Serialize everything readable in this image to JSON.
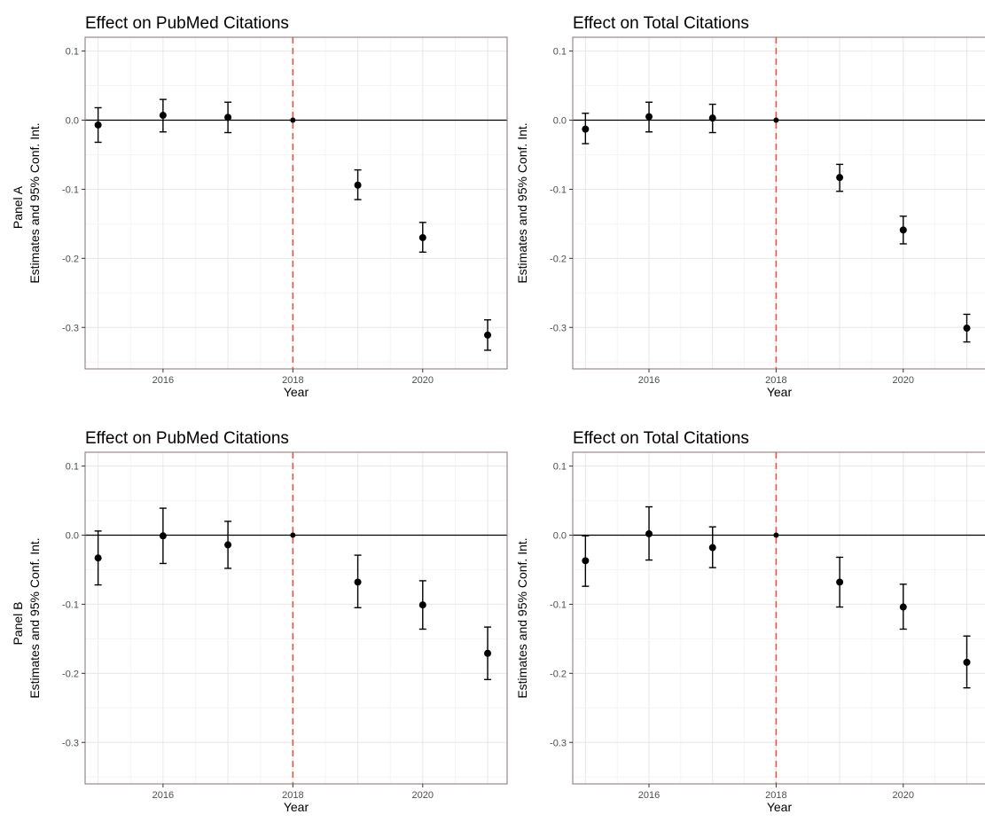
{
  "row_labels": [
    "Panel A",
    "Panel B"
  ],
  "chart_data": [
    {
      "type": "scatter",
      "title": "Effect on PubMed Citations",
      "xlabel": "Year",
      "ylabel": "Estimates and 95% Conf. Int.",
      "row_label": "Panel A",
      "xlim": [
        2014.8,
        2021.3
      ],
      "ylim": [
        -0.36,
        0.12
      ],
      "xticks": [
        "2016",
        "2018",
        "2020"
      ],
      "yticks": [
        "0.1",
        "0.0",
        "-0.1",
        "-0.2",
        "-0.3"
      ],
      "grid": true,
      "reference_line": {
        "y": 0,
        "color": "#000000"
      },
      "event_line": {
        "x": 2018,
        "color": "#e8553f",
        "style": "dashed"
      },
      "points": [
        {
          "x": 2015,
          "y": -0.007,
          "lo": -0.032,
          "hi": 0.018
        },
        {
          "x": 2016,
          "y": 0.007,
          "lo": -0.017,
          "hi": 0.03
        },
        {
          "x": 2017,
          "y": 0.004,
          "lo": -0.018,
          "hi": 0.026
        },
        {
          "x": 2018,
          "y": 0.0,
          "lo": 0.0,
          "hi": 0.0
        },
        {
          "x": 2019,
          "y": -0.094,
          "lo": -0.115,
          "hi": -0.072
        },
        {
          "x": 2020,
          "y": -0.17,
          "lo": -0.191,
          "hi": -0.148
        },
        {
          "x": 2021,
          "y": -0.311,
          "lo": -0.333,
          "hi": -0.289
        }
      ]
    },
    {
      "type": "scatter",
      "title": "Effect on Total Citations",
      "xlabel": "Year",
      "ylabel": "Estimates and 95% Conf. Int.",
      "row_label": "",
      "xlim": [
        2014.8,
        2021.3
      ],
      "ylim": [
        -0.36,
        0.12
      ],
      "xticks": [
        "2016",
        "2018",
        "2020"
      ],
      "yticks": [
        "0.1",
        "0.0",
        "-0.1",
        "-0.2",
        "-0.3"
      ],
      "grid": true,
      "reference_line": {
        "y": 0,
        "color": "#000000"
      },
      "event_line": {
        "x": 2018,
        "color": "#e8553f",
        "style": "dashed"
      },
      "points": [
        {
          "x": 2015,
          "y": -0.013,
          "lo": -0.034,
          "hi": 0.01
        },
        {
          "x": 2016,
          "y": 0.005,
          "lo": -0.017,
          "hi": 0.026
        },
        {
          "x": 2017,
          "y": 0.003,
          "lo": -0.018,
          "hi": 0.023
        },
        {
          "x": 2018,
          "y": 0.0,
          "lo": 0.0,
          "hi": 0.0
        },
        {
          "x": 2019,
          "y": -0.083,
          "lo": -0.103,
          "hi": -0.064
        },
        {
          "x": 2020,
          "y": -0.159,
          "lo": -0.179,
          "hi": -0.139
        },
        {
          "x": 2021,
          "y": -0.301,
          "lo": -0.321,
          "hi": -0.281
        }
      ]
    },
    {
      "type": "scatter",
      "title": "Effect on PubMed Citations",
      "xlabel": "Year",
      "ylabel": "Estimates and 95% Conf. Int.",
      "row_label": "Panel B",
      "xlim": [
        2014.8,
        2021.3
      ],
      "ylim": [
        -0.36,
        0.12
      ],
      "xticks": [
        "2016",
        "2018",
        "2020"
      ],
      "yticks": [
        "0.1",
        "0.0",
        "-0.1",
        "-0.2",
        "-0.3"
      ],
      "grid": true,
      "reference_line": {
        "y": 0,
        "color": "#000000"
      },
      "event_line": {
        "x": 2018,
        "color": "#e8553f",
        "style": "dashed"
      },
      "points": [
        {
          "x": 2015,
          "y": -0.033,
          "lo": -0.072,
          "hi": 0.006
        },
        {
          "x": 2016,
          "y": -0.001,
          "lo": -0.041,
          "hi": 0.039
        },
        {
          "x": 2017,
          "y": -0.014,
          "lo": -0.048,
          "hi": 0.02
        },
        {
          "x": 2018,
          "y": 0.0,
          "lo": 0.0,
          "hi": 0.0
        },
        {
          "x": 2019,
          "y": -0.068,
          "lo": -0.105,
          "hi": -0.029
        },
        {
          "x": 2020,
          "y": -0.101,
          "lo": -0.136,
          "hi": -0.066
        },
        {
          "x": 2021,
          "y": -0.171,
          "lo": -0.209,
          "hi": -0.133
        }
      ]
    },
    {
      "type": "scatter",
      "title": "Effect on Total Citations",
      "xlabel": "Year",
      "ylabel": "Estimates and 95% Conf. Int.",
      "row_label": "",
      "xlim": [
        2014.8,
        2021.3
      ],
      "ylim": [
        -0.36,
        0.12
      ],
      "xticks": [
        "2016",
        "2018",
        "2020"
      ],
      "yticks": [
        "0.1",
        "0.0",
        "-0.1",
        "-0.2",
        "-0.3"
      ],
      "grid": true,
      "reference_line": {
        "y": 0,
        "color": "#000000"
      },
      "event_line": {
        "x": 2018,
        "color": "#e8553f",
        "style": "dashed"
      },
      "points": [
        {
          "x": 2015,
          "y": -0.037,
          "lo": -0.074,
          "hi": -0.001
        },
        {
          "x": 2016,
          "y": 0.002,
          "lo": -0.036,
          "hi": 0.041
        },
        {
          "x": 2017,
          "y": -0.018,
          "lo": -0.047,
          "hi": 0.012
        },
        {
          "x": 2018,
          "y": 0.0,
          "lo": 0.0,
          "hi": 0.0
        },
        {
          "x": 2019,
          "y": -0.068,
          "lo": -0.104,
          "hi": -0.032
        },
        {
          "x": 2020,
          "y": -0.104,
          "lo": -0.136,
          "hi": -0.071
        },
        {
          "x": 2021,
          "y": -0.184,
          "lo": -0.221,
          "hi": -0.146
        }
      ]
    }
  ]
}
